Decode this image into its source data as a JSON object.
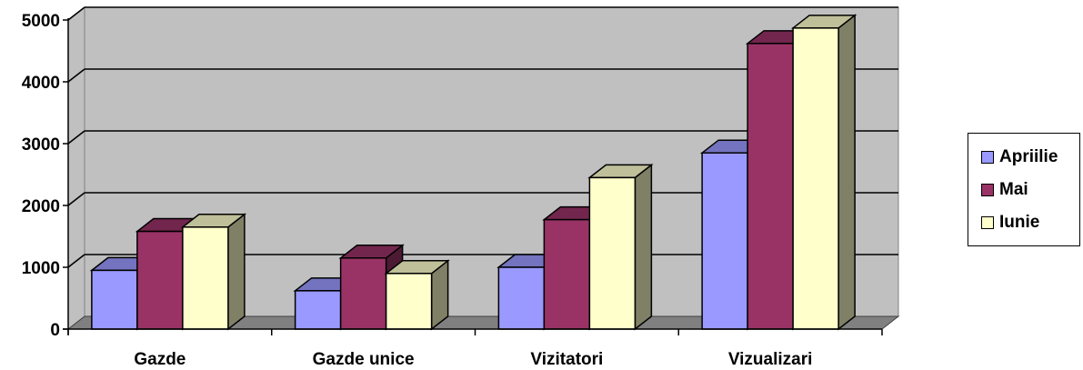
{
  "chart_data": {
    "type": "bar",
    "categories": [
      "Gazde",
      "Gazde unice",
      "Vizitatori",
      "Vizualizari"
    ],
    "series": [
      {
        "name": "Apriilie",
        "color": "#9999ff",
        "values": [
          950,
          620,
          1000,
          2850
        ]
      },
      {
        "name": "Mai",
        "color": "#993366",
        "values": [
          1580,
          1150,
          1770,
          4620
        ]
      },
      {
        "name": "Iunie",
        "color": "#ffffcc",
        "values": [
          1650,
          900,
          2450,
          4870
        ]
      }
    ],
    "ylim": [
      0,
      5000
    ],
    "yticks": [
      "0",
      "1000",
      "2000",
      "3000",
      "4000",
      "5000"
    ],
    "grid": true,
    "legend_position": "right",
    "style": "3d-clustered-column",
    "colors": {
      "wall": "#c0c0c0",
      "floor": "#808080",
      "gridline": "#000000"
    }
  }
}
